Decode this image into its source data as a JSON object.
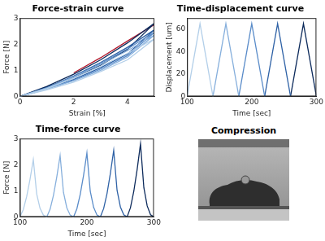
{
  "chart_data": [
    {
      "type": "line",
      "title": "Force-strain curve",
      "x_label": "Strain [%]",
      "y_label": "Force [N]",
      "xlim": [
        0,
        5
      ],
      "xticks": [
        0,
        2,
        4
      ],
      "ylim": [
        0,
        3
      ],
      "yticks": [
        0,
        1,
        2,
        3
      ],
      "grid": false,
      "series": [
        {
          "color": "#b3cfe9",
          "x": [
            0,
            1,
            2,
            3,
            4,
            5,
            4,
            3,
            2,
            1,
            0.2
          ],
          "values": [
            0,
            0.3,
            0.7,
            1.15,
            1.65,
            2.2,
            1.4,
            0.95,
            0.55,
            0.25,
            0.05
          ]
        },
        {
          "color": "#86afdc",
          "x": [
            0,
            1,
            2,
            3,
            4,
            5,
            4,
            3,
            2,
            1,
            0.2
          ],
          "values": [
            0,
            0.32,
            0.74,
            1.22,
            1.75,
            2.35,
            1.5,
            1.0,
            0.6,
            0.28,
            0.05
          ]
        },
        {
          "color": "#5a8cc9",
          "x": [
            0,
            1,
            2,
            3,
            4,
            5,
            4,
            3,
            2,
            1,
            0.2
          ],
          "values": [
            0,
            0.33,
            0.76,
            1.26,
            1.82,
            2.45,
            1.56,
            1.05,
            0.62,
            0.3,
            0.05
          ]
        },
        {
          "color": "#2f62a6",
          "x": [
            0,
            1,
            2,
            3,
            4,
            5,
            4,
            3,
            2,
            1,
            0.2
          ],
          "values": [
            0,
            0.34,
            0.78,
            1.3,
            1.88,
            2.55,
            1.62,
            1.1,
            0.65,
            0.3,
            0.05
          ]
        },
        {
          "color": "#0d2b5c",
          "x": [
            0,
            1,
            2,
            3,
            4,
            5,
            4,
            3,
            2,
            1,
            0.2
          ],
          "values": [
            0,
            0.38,
            0.85,
            1.4,
            2.05,
            2.8,
            1.8,
            1.2,
            0.72,
            0.35,
            0.05
          ]
        },
        {
          "color": "#b2182b",
          "x": [
            2,
            3,
            4,
            5
          ],
          "values": [
            0.9,
            1.48,
            2.12,
            2.75
          ]
        }
      ]
    },
    {
      "type": "line",
      "title": "Time-displacement curve",
      "x_label": "Time [sec]",
      "y_label": "Displacement [um]",
      "xlim": [
        100,
        300
      ],
      "xticks": [
        100,
        200,
        300
      ],
      "ylim": [
        0,
        70
      ],
      "yticks": [
        0,
        20,
        40,
        60
      ],
      "grid": false,
      "series": [
        {
          "color": "#b3cfe9",
          "x": [
            100,
            120,
            140
          ],
          "values": [
            0,
            65,
            0
          ]
        },
        {
          "color": "#86afdc",
          "x": [
            140,
            160,
            180
          ],
          "values": [
            0,
            65,
            0
          ]
        },
        {
          "color": "#5a8cc9",
          "x": [
            180,
            200,
            220
          ],
          "values": [
            0,
            65,
            0
          ]
        },
        {
          "color": "#2f62a6",
          "x": [
            220,
            240,
            260
          ],
          "values": [
            0,
            65,
            0
          ]
        },
        {
          "color": "#0d2b5c",
          "x": [
            260,
            280,
            300
          ],
          "values": [
            0,
            65,
            0
          ]
        }
      ]
    },
    {
      "type": "line",
      "title": "Time-force curve",
      "x_label": "Time [sec]",
      "y_label": "Force [N]",
      "xlim": [
        100,
        300
      ],
      "xticks": [
        100,
        200,
        300
      ],
      "ylim": [
        0,
        3
      ],
      "yticks": [
        0,
        1,
        2,
        3
      ],
      "grid": false,
      "series": [
        {
          "color": "#b3cfe9",
          "x": [
            100,
            105,
            110,
            115,
            120,
            125,
            130,
            135,
            140
          ],
          "values": [
            0,
            0.28,
            0.77,
            1.43,
            2.2,
            0.88,
            0.33,
            0.07,
            0
          ]
        },
        {
          "color": "#86afdc",
          "x": [
            140,
            145,
            150,
            155,
            160,
            165,
            170,
            175,
            180
          ],
          "values": [
            0,
            0.29,
            0.82,
            1.53,
            2.35,
            0.94,
            0.35,
            0.07,
            0
          ]
        },
        {
          "color": "#5a8cc9",
          "x": [
            180,
            185,
            190,
            195,
            200,
            205,
            210,
            215,
            220
          ],
          "values": [
            0,
            0.31,
            0.86,
            1.59,
            2.45,
            0.98,
            0.37,
            0.07,
            0
          ]
        },
        {
          "color": "#2f62a6",
          "x": [
            220,
            225,
            230,
            235,
            240,
            245,
            250,
            255,
            260
          ],
          "values": [
            0,
            0.32,
            0.89,
            1.66,
            2.55,
            1.02,
            0.38,
            0.08,
            0
          ]
        },
        {
          "color": "#0d2b5c",
          "x": [
            260,
            265,
            270,
            275,
            280,
            285,
            290,
            295,
            300
          ],
          "values": [
            0,
            0.35,
            0.98,
            1.82,
            2.8,
            1.12,
            0.42,
            0.08,
            0
          ]
        }
      ]
    }
  ],
  "image": {
    "title": "Compression"
  }
}
